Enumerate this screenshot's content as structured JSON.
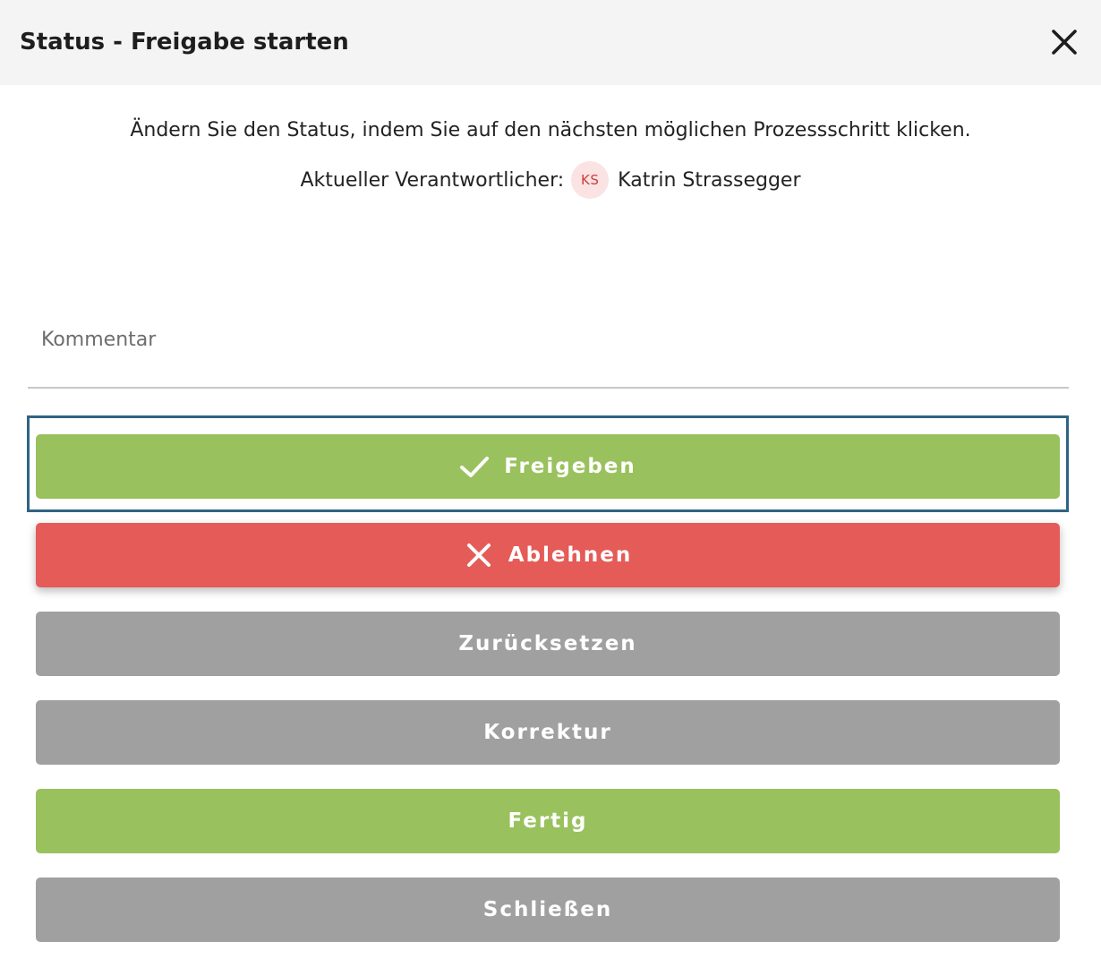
{
  "header": {
    "title": "Status - Freigabe starten",
    "close_icon": "close-icon"
  },
  "intro": {
    "instruction": "Ändern Sie den Status, indem Sie auf den nächsten möglichen Prozessschritt klicken.",
    "responsible_label": "Aktueller Verantwortlicher:",
    "responsible_initials": "KS",
    "responsible_name": "Katrin Strassegger"
  },
  "comment": {
    "placeholder": "Kommentar",
    "value": ""
  },
  "actions": [
    {
      "label": "Freigeben",
      "icon": "check-icon",
      "color": "#99c15d",
      "focused": true
    },
    {
      "label": "Ablehnen",
      "icon": "close-icon",
      "color": "#e55b57"
    },
    {
      "label": "Zurücksetzen",
      "color": "#a0a0a0"
    },
    {
      "label": "Korrektur",
      "color": "#a0a0a0"
    },
    {
      "label": "Fertig",
      "color": "#99c15d"
    },
    {
      "label": "Schließen",
      "color": "#a0a0a0"
    }
  ],
  "colors": {
    "header_bg": "#f4f4f4",
    "focus_ring": "#2f6482",
    "avatar_bg": "#fbe3e3",
    "avatar_text": "#d13c3c"
  }
}
